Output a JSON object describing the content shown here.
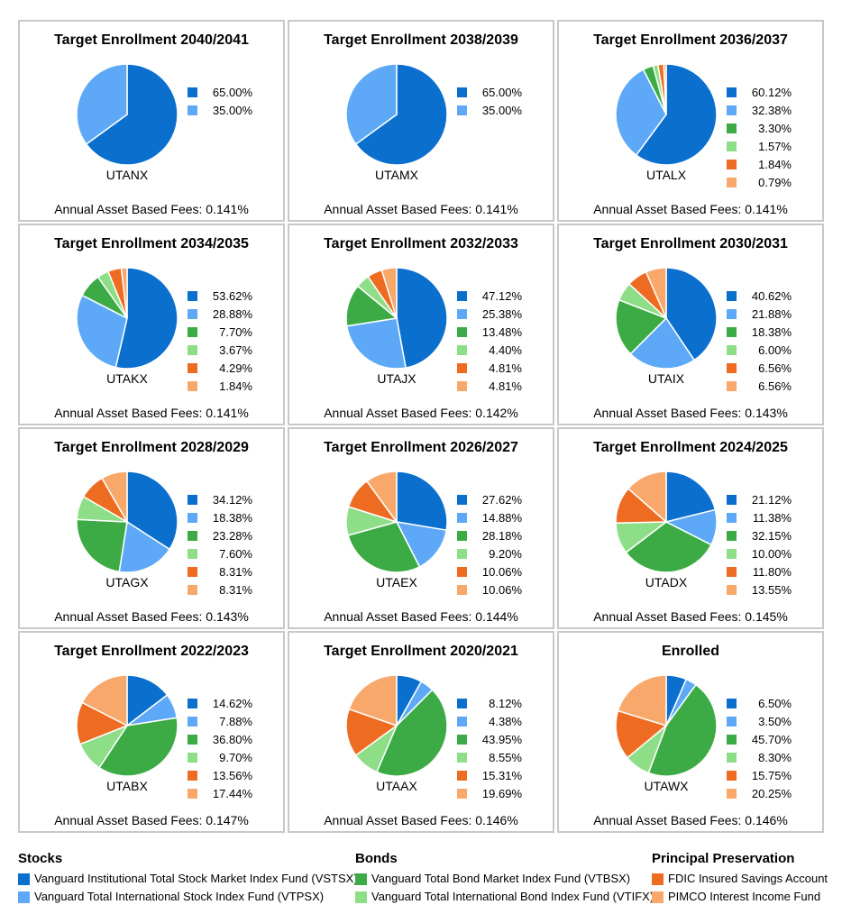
{
  "colors": {
    "vstsx": "#0b6fce",
    "vtpsx": "#5ea9f7",
    "vtbsx": "#3dab45",
    "vtifx": "#8ede88",
    "fdic": "#ee6c22",
    "pimco": "#f8a86a"
  },
  "series_keys": [
    "vstsx",
    "vtpsx",
    "vtbsx",
    "vtifx",
    "fdic",
    "pimco"
  ],
  "chart_data": [
    {
      "type": "pie",
      "title": "Target Enrollment 2040/2041",
      "ticker": "UTANX",
      "values": [
        65.0,
        35.0
      ],
      "labels": [
        "65.00%",
        "35.00%"
      ],
      "fees": "Annual Asset Based Fees: 0.141%"
    },
    {
      "type": "pie",
      "title": "Target Enrollment 2038/2039",
      "ticker": "UTAMX",
      "values": [
        65.0,
        35.0
      ],
      "labels": [
        "65.00%",
        "35.00%"
      ],
      "fees": "Annual Asset Based Fees: 0.141%"
    },
    {
      "type": "pie",
      "title": "Target Enrollment 2036/2037",
      "ticker": "UTALX",
      "values": [
        60.12,
        32.38,
        3.3,
        1.57,
        1.84,
        0.79
      ],
      "labels": [
        "60.12%",
        "32.38%",
        "3.30%",
        "1.57%",
        "1.84%",
        "0.79%"
      ],
      "fees": "Annual Asset Based Fees: 0.141%"
    },
    {
      "type": "pie",
      "title": "Target Enrollment 2034/2035",
      "ticker": "UTAKX",
      "values": [
        53.62,
        28.88,
        7.7,
        3.67,
        4.29,
        1.84
      ],
      "labels": [
        "53.62%",
        "28.88%",
        "7.70%",
        "3.67%",
        "4.29%",
        "1.84%"
      ],
      "fees": "Annual Asset Based Fees: 0.141%"
    },
    {
      "type": "pie",
      "title": "Target Enrollment 2032/2033",
      "ticker": "UTAJX",
      "values": [
        47.12,
        25.38,
        13.48,
        4.4,
        4.81,
        4.81
      ],
      "labels": [
        "47.12%",
        "25.38%",
        "13.48%",
        "4.40%",
        "4.81%",
        "4.81%"
      ],
      "fees": "Annual Asset Based Fees: 0.142%"
    },
    {
      "type": "pie",
      "title": "Target Enrollment 2030/2031",
      "ticker": "UTAIX",
      "values": [
        40.62,
        21.88,
        18.38,
        6.0,
        6.56,
        6.56
      ],
      "labels": [
        "40.62%",
        "21.88%",
        "18.38%",
        "6.00%",
        "6.56%",
        "6.56%"
      ],
      "fees": "Annual Asset Based Fees: 0.143%"
    },
    {
      "type": "pie",
      "title": "Target Enrollment 2028/2029",
      "ticker": "UTAGX",
      "values": [
        34.12,
        18.38,
        23.28,
        7.6,
        8.31,
        8.31
      ],
      "labels": [
        "34.12%",
        "18.38%",
        "23.28%",
        "7.60%",
        "8.31%",
        "8.31%"
      ],
      "fees": "Annual Asset Based Fees: 0.143%"
    },
    {
      "type": "pie",
      "title": "Target Enrollment 2026/2027",
      "ticker": "UTAEX",
      "values": [
        27.62,
        14.88,
        28.18,
        9.2,
        10.06,
        10.06
      ],
      "labels": [
        "27.62%",
        "14.88%",
        "28.18%",
        "9.20%",
        "10.06%",
        "10.06%"
      ],
      "fees": "Annual Asset Based Fees: 0.144%"
    },
    {
      "type": "pie",
      "title": "Target Enrollment 2024/2025",
      "ticker": "UTADX",
      "values": [
        21.12,
        11.38,
        32.15,
        10.0,
        11.8,
        13.55
      ],
      "labels": [
        "21.12%",
        "11.38%",
        "32.15%",
        "10.00%",
        "11.80%",
        "13.55%"
      ],
      "fees": "Annual Asset Based Fees: 0.145%"
    },
    {
      "type": "pie",
      "title": "Target Enrollment 2022/2023",
      "ticker": "UTABX",
      "values": [
        14.62,
        7.88,
        36.8,
        9.7,
        13.56,
        17.44
      ],
      "labels": [
        "14.62%",
        "7.88%",
        "36.80%",
        "9.70%",
        "13.56%",
        "17.44%"
      ],
      "fees": "Annual Asset Based Fees: 0.147%"
    },
    {
      "type": "pie",
      "title": "Target Enrollment 2020/2021",
      "ticker": "UTAAX",
      "values": [
        8.12,
        4.38,
        43.95,
        8.55,
        15.31,
        19.69
      ],
      "labels": [
        "8.12%",
        "4.38%",
        "43.95%",
        "8.55%",
        "15.31%",
        "19.69%"
      ],
      "fees": "Annual Asset Based Fees: 0.146%"
    },
    {
      "type": "pie",
      "title": "Enrolled",
      "ticker": "UTAWX",
      "values": [
        6.5,
        3.5,
        45.7,
        8.3,
        15.75,
        20.25
      ],
      "labels": [
        "6.50%",
        "3.50%",
        "45.70%",
        "8.30%",
        "15.75%",
        "20.25%"
      ],
      "fees": "Annual Asset Based Fees: 0.146%"
    }
  ],
  "fund_legend": [
    {
      "heading": "Stocks",
      "items": [
        {
          "key": "vstsx",
          "label": "Vanguard Institutional Total Stock Market Index Fund (VSTSX)"
        },
        {
          "key": "vtpsx",
          "label": "Vanguard Total International Stock Index Fund (VTPSX)"
        }
      ]
    },
    {
      "heading": "Bonds",
      "items": [
        {
          "key": "vtbsx",
          "label": "Vanguard Total Bond Market Index Fund (VTBSX)"
        },
        {
          "key": "vtifx",
          "label": "Vanguard Total International Bond Index Fund (VTIFX)"
        }
      ]
    },
    {
      "heading": "Principal Preservation",
      "items": [
        {
          "key": "fdic",
          "label": "FDIC Insured Savings Account"
        },
        {
          "key": "pimco",
          "label": "PIMCO Interest Income Fund"
        }
      ]
    }
  ]
}
